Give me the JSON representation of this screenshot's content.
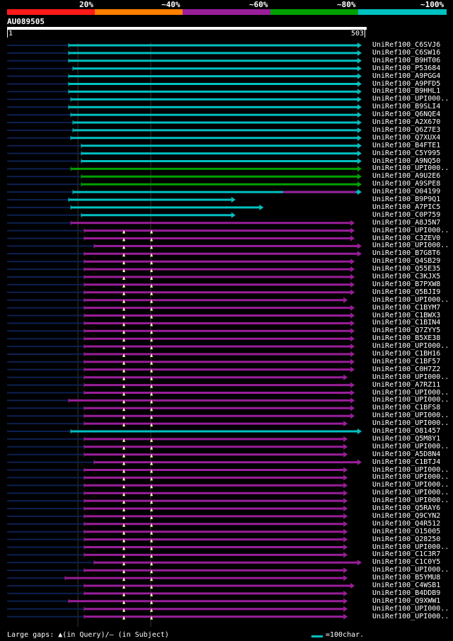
{
  "header": {
    "percent_labels": [
      "20%",
      "~40%",
      "~60%",
      "~80%",
      "~100%"
    ],
    "color_bands": [
      "#ff1a1a",
      "#ff7f00",
      "#9a1e9a",
      "#00a000",
      "#00c0c0"
    ]
  },
  "query": {
    "name": "AU089505",
    "start": "1",
    "end": "503",
    "length": 503
  },
  "colors": {
    "cyan": "#00c0c0",
    "green": "#00a000",
    "purple": "#9a1e9a",
    "dark": "#0c2050",
    "gap": "#ffffaa"
  },
  "hits": [
    {
      "label": "UniRef100_C6SVJ6",
      "color": "cyan",
      "start": 1,
      "end": 503
    },
    {
      "label": "UniRef100_C6SW16",
      "color": "cyan",
      "start": 1,
      "end": 503
    },
    {
      "label": "UniRef100_B9HT06",
      "color": "cyan",
      "start": 1,
      "end": 503
    },
    {
      "label": "UniRef100_P53684",
      "color": "cyan",
      "start": 1,
      "end": 503
    },
    {
      "label": "UniRef100_A9PGG4",
      "color": "cyan",
      "start": 1,
      "end": 503
    },
    {
      "label": "UniRef100_A9PFD5",
      "color": "cyan",
      "start": 1,
      "end": 503
    },
    {
      "label": "UniRef100_B9HHL1",
      "color": "cyan",
      "start": 1,
      "end": 503
    },
    {
      "label": "UniRef100_UPI000..",
      "color": "cyan",
      "start": 1,
      "end": 503
    },
    {
      "label": "UniRef100_B9SLI4",
      "color": "cyan",
      "start": 1,
      "end": 503
    },
    {
      "label": "UniRef100_Q6NQE4",
      "color": "cyan",
      "start": 1,
      "end": 503
    },
    {
      "label": "UniRef100_A2X670",
      "color": "cyan",
      "start": 1,
      "end": 503
    },
    {
      "label": "UniRef100_Q6Z7E3",
      "color": "cyan",
      "start": 1,
      "end": 503
    },
    {
      "label": "UniRef100_Q7XUX4",
      "color": "cyan",
      "start": 1,
      "end": 503
    },
    {
      "label": "UniRef100_B4FTE1",
      "color": "cyan",
      "start": 1,
      "end": 503
    },
    {
      "label": "UniRef100_C5Y995",
      "color": "cyan",
      "start": 1,
      "end": 503
    },
    {
      "label": "UniRef100_A9NQ50",
      "color": "cyan",
      "start": 1,
      "end": 503
    },
    {
      "label": "UniRef100_UPI000..",
      "color": "green",
      "start": 1,
      "end": 503
    },
    {
      "label": "UniRef100_A9U2E6",
      "color": "green",
      "start": 1,
      "end": 503
    },
    {
      "label": "UniRef100_A9SPE8",
      "color": "green",
      "start": 1,
      "end": 503
    },
    {
      "label": "UniRef100_O04199",
      "color": "cyan",
      "start": 1,
      "end": 503
    },
    {
      "label": "UniRef100_B9P9Q1",
      "color": "cyan",
      "start": 1,
      "end": 320
    },
    {
      "label": "UniRef100_A7PIC5",
      "color": "cyan",
      "start": 1,
      "end": 360
    },
    {
      "label": "UniRef100_C0P759",
      "color": "cyan",
      "start": 1,
      "end": 320
    },
    {
      "label": "UniRef100_A8J5N7",
      "color": "purple",
      "start": 1,
      "end": 490
    },
    {
      "label": "UniRef100_UPI000..",
      "color": "purple",
      "start": 1,
      "end": 490
    },
    {
      "label": "UniRef100_C3ZEV0",
      "color": "purple",
      "start": 1,
      "end": 490
    },
    {
      "label": "UniRef100_UPI000..",
      "color": "purple",
      "start": 1,
      "end": 500
    },
    {
      "label": "UniRef100_B7G8T6",
      "color": "purple",
      "start": 1,
      "end": 500
    },
    {
      "label": "UniRef100_Q4SB29",
      "color": "purple",
      "start": 1,
      "end": 490
    },
    {
      "label": "UniRef100_Q55E35",
      "color": "purple",
      "start": 1,
      "end": 490
    },
    {
      "label": "UniRef100_C3KJX5",
      "color": "purple",
      "start": 1,
      "end": 490
    },
    {
      "label": "UniRef100_B7PXW8",
      "color": "purple",
      "start": 1,
      "end": 490
    },
    {
      "label": "UniRef100_Q5BJI9",
      "color": "purple",
      "start": 1,
      "end": 490
    },
    {
      "label": "UniRef100_UPI000..",
      "color": "purple",
      "start": 1,
      "end": 480
    },
    {
      "label": "UniRef100_C1BYM7",
      "color": "purple",
      "start": 1,
      "end": 490
    },
    {
      "label": "UniRef100_C1BWX3",
      "color": "purple",
      "start": 1,
      "end": 490
    },
    {
      "label": "UniRef100_C1BIN4",
      "color": "purple",
      "start": 1,
      "end": 490
    },
    {
      "label": "UniRef100_Q7ZYY5",
      "color": "purple",
      "start": 1,
      "end": 490
    },
    {
      "label": "UniRef100_B5XE38",
      "color": "purple",
      "start": 1,
      "end": 490
    },
    {
      "label": "UniRef100_UPI000..",
      "color": "purple",
      "start": 1,
      "end": 490
    },
    {
      "label": "UniRef100_C1BH16",
      "color": "purple",
      "start": 1,
      "end": 490
    },
    {
      "label": "UniRef100_C1BF57",
      "color": "purple",
      "start": 1,
      "end": 490
    },
    {
      "label": "UniRef100_C0H7Z2",
      "color": "purple",
      "start": 1,
      "end": 490
    },
    {
      "label": "UniRef100_UPI000..",
      "color": "purple",
      "start": 1,
      "end": 480
    },
    {
      "label": "UniRef100_A7RZ11",
      "color": "purple",
      "start": 1,
      "end": 490
    },
    {
      "label": "UniRef100_UPI000..",
      "color": "purple",
      "start": 1,
      "end": 490
    },
    {
      "label": "UniRef100_UPI000..",
      "color": "purple",
      "start": 1,
      "end": 490
    },
    {
      "label": "UniRef100_C1BFS8",
      "color": "purple",
      "start": 1,
      "end": 490
    },
    {
      "label": "UniRef100_UPI000..",
      "color": "purple",
      "start": 1,
      "end": 490
    },
    {
      "label": "UniRef100_UPI000..",
      "color": "purple",
      "start": 1,
      "end": 480
    },
    {
      "label": "UniRef100_O81457",
      "color": "cyan",
      "start": 1,
      "end": 503
    },
    {
      "label": "UniRef100_Q5M8Y1",
      "color": "purple",
      "start": 1,
      "end": 480
    },
    {
      "label": "UniRef100_UPI000..",
      "color": "purple",
      "start": 1,
      "end": 480
    },
    {
      "label": "UniRef100_A5D8N4",
      "color": "purple",
      "start": 1,
      "end": 480
    },
    {
      "label": "UniRef100_C1BTJ4",
      "color": "purple",
      "start": 1,
      "end": 500
    },
    {
      "label": "UniRef100_UPI000..",
      "color": "purple",
      "start": 1,
      "end": 480
    },
    {
      "label": "UniRef100_UPI000..",
      "color": "purple",
      "start": 1,
      "end": 480
    },
    {
      "label": "UniRef100_UPI000..",
      "color": "purple",
      "start": 1,
      "end": 480
    },
    {
      "label": "UniRef100_UPI000..",
      "color": "purple",
      "start": 1,
      "end": 480
    },
    {
      "label": "UniRef100_UPI000..",
      "color": "purple",
      "start": 1,
      "end": 480
    },
    {
      "label": "UniRef100_Q5RAY6",
      "color": "purple",
      "start": 1,
      "end": 480
    },
    {
      "label": "UniRef100_Q9CYN2",
      "color": "purple",
      "start": 1,
      "end": 480
    },
    {
      "label": "UniRef100_Q4R512",
      "color": "purple",
      "start": 1,
      "end": 480
    },
    {
      "label": "UniRef100_O15005",
      "color": "purple",
      "start": 1,
      "end": 480
    },
    {
      "label": "UniRef100_Q28250",
      "color": "purple",
      "start": 1,
      "end": 480
    },
    {
      "label": "UniRef100_UPI000..",
      "color": "purple",
      "start": 1,
      "end": 480
    },
    {
      "label": "UniRef100_C1C3R7",
      "color": "purple",
      "start": 1,
      "end": 480
    },
    {
      "label": "UniRef100_C1C0Y5",
      "color": "purple",
      "start": 1,
      "end": 500
    },
    {
      "label": "UniRef100_UPI000..",
      "color": "purple",
      "start": 1,
      "end": 480
    },
    {
      "label": "UniRef100_B5YMU8",
      "color": "purple",
      "start": 1,
      "end": 480
    },
    {
      "label": "UniRef100_C4WSB1",
      "color": "purple",
      "start": 1,
      "end": 490
    },
    {
      "label": "UniRef100_B4DDB9",
      "color": "purple",
      "start": 1,
      "end": 480
    },
    {
      "label": "UniRef100_Q9XWW1",
      "color": "purple",
      "start": 1,
      "end": 480
    },
    {
      "label": "UniRef100_UPI000..",
      "color": "purple",
      "start": 1,
      "end": 480
    },
    {
      "label": "UniRef100_UPI000..",
      "color": "purple",
      "start": 1,
      "end": 480
    }
  ],
  "legend": {
    "gaps_text": "Large gaps: ▲(in Query)/– (in Subject)",
    "scale_text": "=100char."
  }
}
